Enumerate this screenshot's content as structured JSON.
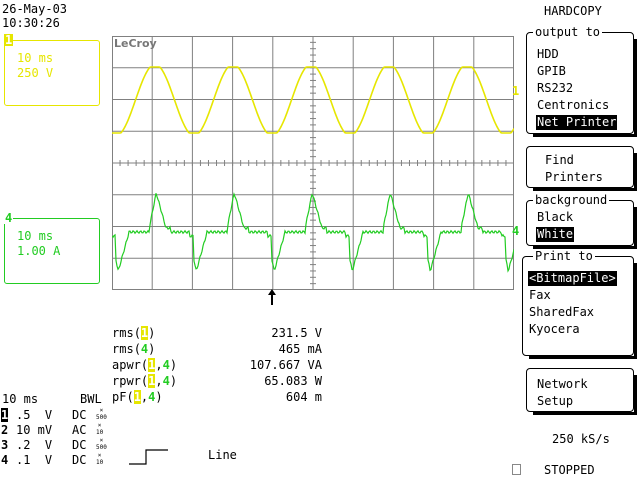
{
  "header": {
    "date": "26-May-03",
    "time": "10:30:26",
    "menu_title": "HARDCOPY"
  },
  "brand": "LeCroy",
  "colors": {
    "ch1": "#e6e600",
    "ch4": "#22cc22",
    "grid": "#808080"
  },
  "channels": [
    {
      "number": "1",
      "timebase": "10 ms",
      "scale": "250 V"
    },
    {
      "number": "4",
      "timebase": "10 ms",
      "scale": "1.00 A"
    }
  ],
  "trace_markers": {
    "ch1": "1",
    "ch4": "4"
  },
  "measurements": [
    {
      "name": "rms",
      "src": "1",
      "src2": "",
      "value": "231.5 V"
    },
    {
      "name": "rms",
      "src": "4",
      "src2": "",
      "value": "465 mA"
    },
    {
      "name": "apwr",
      "src": "1",
      "src2": "4",
      "value": "107.667 VA"
    },
    {
      "name": "rpwr",
      "src": "1",
      "src2": "4",
      "value": "65.083 W"
    },
    {
      "name": "pF",
      "src": "1",
      "src2": "4",
      "value": "604 m"
    }
  ],
  "acquisition": {
    "timebase": "10 ms",
    "bwl": "BWL",
    "channels": [
      {
        "num": "1",
        "scale": ".5  V",
        "coupling": "DC",
        "probe": "500"
      },
      {
        "num": "2",
        "scale": "10 mV",
        "coupling": "AC",
        "probe": "10"
      },
      {
        "num": "3",
        "scale": ".2  V",
        "coupling": "DC",
        "probe": "500"
      },
      {
        "num": "4",
        "scale": ".1  V",
        "coupling": "DC",
        "probe": "10"
      }
    ],
    "trigger_source": "Line",
    "sample_rate": "250 kS/s",
    "status": "STOPPED"
  },
  "menu": {
    "output_to": {
      "title": "output to",
      "items": [
        "HDD",
        "GPIB",
        "RS232",
        "Centronics",
        "Net Printer"
      ],
      "selected": "Net Printer"
    },
    "find_printers": {
      "line1": "Find",
      "line2": "Printers"
    },
    "background": {
      "title": "background",
      "items": [
        "Black",
        "White"
      ],
      "selected": "White"
    },
    "print_to": {
      "title": "Print to",
      "items": [
        "<BitmapFile>",
        "Fax",
        "SharedFax",
        "Kyocera"
      ],
      "selected": "<BitmapFile>"
    },
    "network_setup": {
      "line1": "Network",
      "line2": "Setup"
    }
  },
  "icons": {
    "trigger_arrow": "arrow-up-icon",
    "trigger_edge": "rising-edge-icon"
  }
}
